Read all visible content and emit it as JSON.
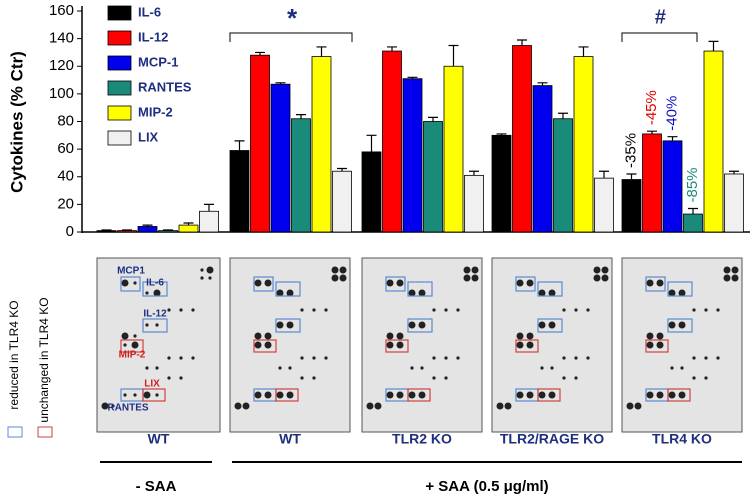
{
  "chart_data": {
    "type": "bar",
    "y_label": "Cytokines (% Ctr)",
    "categories": [
      "WT",
      "WT",
      "TLR2 KO",
      "TLR2/RAGE KO",
      "TLR4 KO"
    ],
    "groups": [
      "- SAA",
      "+ SAA (0.5 μg/ml)"
    ],
    "series": [
      {
        "name": "IL-6",
        "color": "#000000",
        "values": [
          1,
          59,
          58,
          70,
          38
        ],
        "errors": [
          0.5,
          7,
          12,
          1,
          4
        ]
      },
      {
        "name": "IL-12",
        "color": "#ff0000",
        "values": [
          1,
          128,
          131,
          135,
          71
        ],
        "errors": [
          0.5,
          2,
          3,
          4,
          2
        ]
      },
      {
        "name": "MCP-1",
        "color": "#0000ee",
        "values": [
          4,
          107,
          111,
          106,
          66
        ],
        "errors": [
          1,
          1,
          1,
          2,
          3
        ]
      },
      {
        "name": "RANTES",
        "color": "#1a8a7a",
        "values": [
          1,
          82,
          80,
          82,
          13
        ],
        "errors": [
          0.5,
          3,
          3,
          4,
          4
        ]
      },
      {
        "name": "MIP-2",
        "color": "#ffff00",
        "values": [
          5,
          127,
          120,
          127,
          131
        ],
        "errors": [
          1.5,
          7,
          15,
          7,
          7
        ]
      },
      {
        "name": "LIX",
        "color": "#f0f0f0",
        "values": [
          15,
          44,
          41,
          39,
          42
        ],
        "errors": [
          5,
          2,
          3,
          5,
          2
        ]
      }
    ],
    "ylim": [
      0,
      160
    ],
    "yticks": [
      0,
      20,
      40,
      60,
      80,
      100,
      120,
      140,
      160
    ],
    "significance": [
      "*",
      "#"
    ],
    "annotations": [
      {
        "text": "-35%",
        "color": "#000000"
      },
      {
        "text": "-45%",
        "color": "#e00000"
      },
      {
        "text": "-40%",
        "color": "#1010c0"
      },
      {
        "text": "-85%",
        "color": "#1a8a7a"
      }
    ]
  },
  "blot_labels": [
    "MCP1",
    "IL-6",
    "IL-12",
    "MIP-2",
    "LIX",
    "RANTES"
  ],
  "box_legend": [
    "reduced in TLR4 KO",
    "unchanged in TLR4 KO"
  ]
}
